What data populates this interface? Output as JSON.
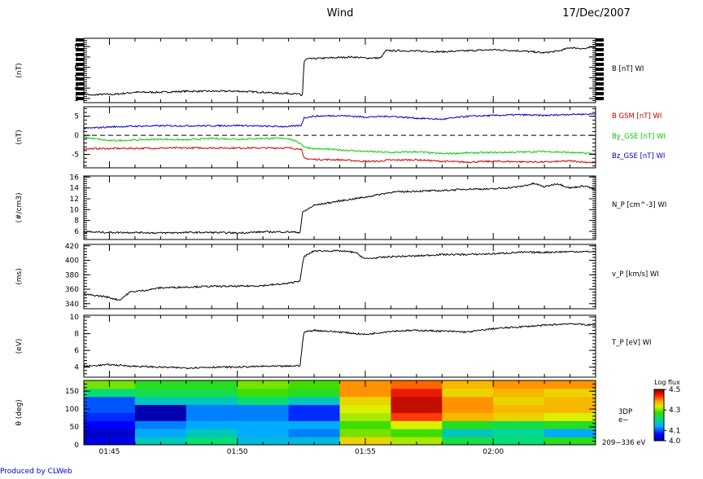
{
  "header": {
    "mission": "Wind",
    "date": "17/Dec/2007"
  },
  "footer": {
    "credit": "Produced by CLWeb"
  },
  "time_axis": {
    "labels": [
      "01:45",
      "01:50",
      "01:55",
      "02:00"
    ]
  },
  "colorbar": {
    "title": "Log flux",
    "tick_labels": [
      "4.5",
      "4.3",
      "4.1",
      "4.0"
    ]
  },
  "chart_data": [
    {
      "type": "line",
      "ylabel": "(nT)",
      "ylim": [
        2.6,
        8.8
      ],
      "yticks": [
        3,
        4,
        5,
        6,
        7,
        8
      ],
      "series": [
        {
          "name": "B [nT] WI",
          "color": "#000000",
          "points": [
            [
              0,
              3.5
            ],
            [
              0.3,
              3.3
            ],
            [
              0.6,
              3.4
            ],
            [
              1.2,
              3.4
            ],
            [
              2,
              3.6
            ],
            [
              3,
              3.6
            ],
            [
              4,
              3.7
            ],
            [
              5,
              3.7
            ],
            [
              6,
              3.7
            ],
            [
              7,
              3.6
            ],
            [
              7.6,
              3.5
            ],
            [
              8,
              3.5
            ],
            [
              8.45,
              3.4
            ],
            [
              8.5,
              3.2
            ],
            [
              8.55,
              3.5
            ],
            [
              8.6,
              6.5
            ],
            [
              8.7,
              6.8
            ],
            [
              9.5,
              6.9
            ],
            [
              10.5,
              7.0
            ],
            [
              11,
              6.9
            ],
            [
              11.6,
              6.9
            ],
            [
              11.8,
              7.6
            ],
            [
              12.5,
              7.6
            ],
            [
              14,
              7.5
            ],
            [
              15,
              7.6
            ],
            [
              16,
              7.7
            ],
            [
              17,
              7.6
            ],
            [
              18,
              7.4
            ],
            [
              18.6,
              7.6
            ],
            [
              19,
              7.9
            ],
            [
              19.6,
              7.8
            ],
            [
              20,
              8.0
            ]
          ]
        }
      ]
    },
    {
      "type": "line",
      "ylabel": "(nT)",
      "ylim": [
        -8.5,
        7.5
      ],
      "yticks": [
        -5,
        0,
        5
      ],
      "series": [
        {
          "name": "B GSM [nT] WI",
          "color": "#cc0000",
          "points": [
            [
              0,
              -3.5
            ],
            [
              2,
              -3.4
            ],
            [
              4,
              -3.3
            ],
            [
              6,
              -3.3
            ],
            [
              8,
              -3.3
            ],
            [
              8.5,
              -3.6
            ],
            [
              8.6,
              -6.0
            ],
            [
              9,
              -6.3
            ],
            [
              10,
              -6.4
            ],
            [
              11,
              -6.8
            ],
            [
              11.6,
              -6.8
            ],
            [
              11.8,
              -6.5
            ],
            [
              13,
              -6.4
            ],
            [
              14,
              -6.8
            ],
            [
              15,
              -7.0
            ],
            [
              16,
              -6.8
            ],
            [
              17,
              -6.9
            ],
            [
              18,
              -7.0
            ],
            [
              19,
              -6.7
            ],
            [
              20,
              -7.2
            ]
          ]
        },
        {
          "name": "By_GSE [nT] WI",
          "color": "#00cc00",
          "points": [
            [
              0,
              -0.5
            ],
            [
              1,
              -1.4
            ],
            [
              2,
              -1.2
            ],
            [
              3,
              -1.0
            ],
            [
              4,
              -1.2
            ],
            [
              5,
              -0.8
            ],
            [
              6,
              -1.0
            ],
            [
              7,
              -0.8
            ],
            [
              8,
              -0.8
            ],
            [
              8.5,
              -2.2
            ],
            [
              8.6,
              -3.0
            ],
            [
              9,
              -3.5
            ],
            [
              10,
              -3.8
            ],
            [
              11,
              -4.2
            ],
            [
              12,
              -4.5
            ],
            [
              13,
              -4.3
            ],
            [
              14,
              -4.8
            ],
            [
              15,
              -4.6
            ],
            [
              16,
              -4.5
            ],
            [
              17,
              -4.4
            ],
            [
              18,
              -4.2
            ],
            [
              19,
              -4.5
            ],
            [
              20,
              -4.8
            ]
          ]
        },
        {
          "name": "Bz_GSE [nT] WI",
          "color": "#0000cc",
          "points": [
            [
              0,
              1.8
            ],
            [
              1,
              2.2
            ],
            [
              2,
              2.4
            ],
            [
              3,
              2.5
            ],
            [
              4,
              2.5
            ],
            [
              5,
              2.5
            ],
            [
              6,
              2.6
            ],
            [
              7,
              2.4
            ],
            [
              8,
              2.3
            ],
            [
              8.5,
              2.6
            ],
            [
              8.6,
              4.6
            ],
            [
              9,
              5.0
            ],
            [
              10,
              5.2
            ],
            [
              11,
              4.8
            ],
            [
              12,
              5.0
            ],
            [
              13,
              4.5
            ],
            [
              14,
              4.2
            ],
            [
              15,
              5.0
            ],
            [
              16,
              5.2
            ],
            [
              17,
              5.4
            ],
            [
              18,
              5.2
            ],
            [
              19,
              5.5
            ],
            [
              20,
              5.6
            ]
          ]
        }
      ]
    },
    {
      "type": "line",
      "ylabel": "(#/cm3)",
      "ylim": [
        4.5,
        16.2
      ],
      "yticks": [
        6,
        8,
        10,
        12,
        14,
        16
      ],
      "series": [
        {
          "name": "N_P [cm^-3] WI",
          "color": "#000000",
          "points": [
            [
              0,
              5.9
            ],
            [
              1,
              5.8
            ],
            [
              2,
              5.8
            ],
            [
              3,
              5.7
            ],
            [
              4,
              5.8
            ],
            [
              5,
              5.8
            ],
            [
              6,
              5.7
            ],
            [
              7,
              5.9
            ],
            [
              8,
              5.9
            ],
            [
              8.45,
              5.8
            ],
            [
              8.55,
              9.5
            ],
            [
              9,
              10.8
            ],
            [
              10,
              11.6
            ],
            [
              11,
              12.3
            ],
            [
              12,
              13.2
            ],
            [
              13,
              13.4
            ],
            [
              14,
              13.5
            ],
            [
              15,
              13.8
            ],
            [
              16,
              13.8
            ],
            [
              17,
              14.2
            ],
            [
              17.6,
              14.8
            ],
            [
              18,
              14.2
            ],
            [
              18.5,
              14.8
            ],
            [
              19,
              14.0
            ],
            [
              19.6,
              14.4
            ],
            [
              20,
              13.6
            ]
          ]
        }
      ]
    },
    {
      "type": "line",
      "ylabel": "(ms)",
      "ylim": [
        333,
        422
      ],
      "yticks": [
        340,
        360,
        380,
        400,
        420
      ],
      "series": [
        {
          "name": "v_P [km/s] WI",
          "color": "#000000",
          "points": [
            [
              0,
              353
            ],
            [
              0.8,
              350
            ],
            [
              1.4,
              345
            ],
            [
              1.8,
              356
            ],
            [
              2.5,
              359
            ],
            [
              3,
              362
            ],
            [
              4,
              363
            ],
            [
              5,
              364
            ],
            [
              6,
              364
            ],
            [
              7,
              365
            ],
            [
              8,
              368
            ],
            [
              8.45,
              372
            ],
            [
              8.6,
              405
            ],
            [
              9,
              413
            ],
            [
              10,
              413
            ],
            [
              10.6,
              411
            ],
            [
              11,
              402
            ],
            [
              11.3,
              403
            ],
            [
              12,
              405
            ],
            [
              13,
              406
            ],
            [
              14,
              408
            ],
            [
              15,
              408
            ],
            [
              16,
              409
            ],
            [
              17,
              411
            ],
            [
              18,
              411
            ],
            [
              19,
              412
            ],
            [
              20,
              412
            ]
          ]
        }
      ]
    },
    {
      "type": "line",
      "ylabel": "(eV)",
      "ylim": [
        2.8,
        10.2
      ],
      "yticks": [
        4,
        6,
        8,
        10
      ],
      "series": [
        {
          "name": "T_P [eV] WI",
          "color": "#000000",
          "points": [
            [
              0,
              4.1
            ],
            [
              1,
              4.3
            ],
            [
              2,
              4.1
            ],
            [
              3,
              4.0
            ],
            [
              4,
              3.9
            ],
            [
              5,
              4.0
            ],
            [
              6,
              4.0
            ],
            [
              7,
              4.1
            ],
            [
              8,
              4.1
            ],
            [
              8.45,
              4.2
            ],
            [
              8.6,
              8.2
            ],
            [
              9,
              8.4
            ],
            [
              10,
              8.2
            ],
            [
              11,
              7.9
            ],
            [
              12,
              8.3
            ],
            [
              13,
              8.4
            ],
            [
              14,
              8.3
            ],
            [
              15,
              8.2
            ],
            [
              16,
              8.6
            ],
            [
              17,
              8.8
            ],
            [
              18,
              9.0
            ],
            [
              19,
              9.2
            ],
            [
              20,
              9.0
            ]
          ]
        }
      ]
    },
    {
      "type": "heatmap",
      "ylabel": "θ (deg)",
      "ylim": [
        0,
        180
      ],
      "yticks": [
        0,
        50,
        100,
        150
      ],
      "label": "3DP",
      "sublabel": "e−",
      "energy": "209−336 eV",
      "x_edges": [
        0,
        1,
        2,
        3,
        4,
        5,
        6,
        7,
        8,
        9,
        10,
        11,
        12,
        13,
        14,
        15,
        16,
        17,
        18,
        19,
        20
      ],
      "y_edges": [
        0,
        22.5,
        45,
        67.5,
        90,
        112.5,
        135,
        157.5,
        180
      ],
      "z": [
        [
          4.04,
          4.04,
          4.18,
          4.18,
          4.22,
          4.22,
          4.16,
          4.16,
          4.16,
          4.16,
          4.36,
          4.36,
          4.32,
          4.32,
          4.24,
          4.24,
          4.22,
          4.22,
          4.26,
          4.26
        ],
        [
          4.02,
          4.02,
          4.14,
          4.14,
          4.18,
          4.18,
          4.14,
          4.14,
          4.12,
          4.12,
          4.3,
          4.3,
          4.28,
          4.28,
          4.18,
          4.18,
          4.2,
          4.2,
          4.14,
          4.14
        ],
        [
          4.06,
          4.06,
          4.12,
          4.12,
          4.14,
          4.14,
          4.14,
          4.14,
          4.14,
          4.14,
          4.28,
          4.28,
          4.34,
          4.34,
          4.26,
          4.26,
          4.24,
          4.24,
          4.26,
          4.26
        ],
        [
          4.08,
          4.08,
          4.0,
          4.0,
          4.12,
          4.12,
          4.12,
          4.12,
          4.08,
          4.08,
          4.32,
          4.32,
          4.44,
          4.44,
          4.38,
          4.38,
          4.36,
          4.36,
          4.34,
          4.34
        ],
        [
          4.1,
          4.1,
          4.0,
          4.0,
          4.12,
          4.12,
          4.12,
          4.12,
          4.08,
          4.08,
          4.34,
          4.34,
          4.48,
          4.48,
          4.4,
          4.4,
          4.38,
          4.38,
          4.38,
          4.38
        ],
        [
          4.1,
          4.1,
          4.18,
          4.18,
          4.18,
          4.18,
          4.22,
          4.22,
          4.18,
          4.18,
          4.36,
          4.36,
          4.48,
          4.48,
          4.4,
          4.4,
          4.36,
          4.36,
          4.38,
          4.38
        ],
        [
          4.22,
          4.22,
          4.24,
          4.24,
          4.24,
          4.24,
          4.28,
          4.28,
          4.26,
          4.26,
          4.4,
          4.4,
          4.46,
          4.46,
          4.36,
          4.36,
          4.38,
          4.38,
          4.36,
          4.36
        ],
        [
          4.3,
          4.3,
          4.26,
          4.26,
          4.26,
          4.26,
          4.3,
          4.3,
          4.28,
          4.28,
          4.4,
          4.4,
          4.42,
          4.42,
          4.38,
          4.38,
          4.4,
          4.4,
          4.4,
          4.4
        ]
      ]
    }
  ]
}
